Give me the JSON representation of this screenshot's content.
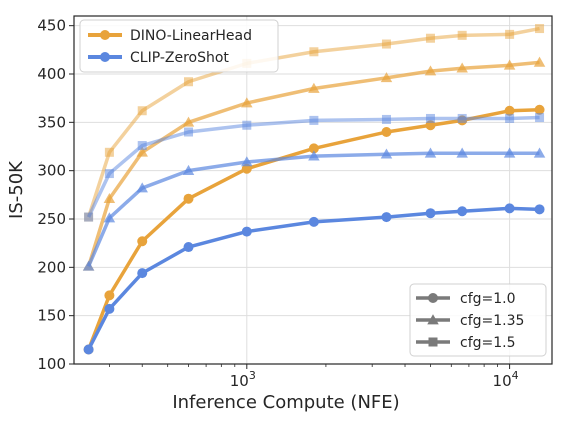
{
  "chart_data": {
    "type": "line",
    "xlabel": "Inference Compute (NFE)",
    "ylabel": "IS-50K",
    "xscale": "log",
    "xlim": [
      220,
      14500
    ],
    "ylim": [
      100,
      460
    ],
    "yticks": [
      100,
      150,
      200,
      250,
      300,
      350,
      400,
      450
    ],
    "xticks": [
      {
        "value": 1000,
        "base": "10",
        "exp": "3"
      },
      {
        "value": 10000,
        "base": "10",
        "exp": "4"
      }
    ],
    "grid": true,
    "colors": {
      "dino": "#E8A33B",
      "clip": "#5B87DF"
    },
    "method_legend": {
      "placement": "top-left",
      "entries": [
        {
          "label": "DINO-LinearHead",
          "color": "#E8A33B"
        },
        {
          "label": "CLIP-ZeroShot",
          "color": "#5B87DF"
        }
      ]
    },
    "cfg_legend": {
      "placement": "bottom-right",
      "entries": [
        {
          "label": "cfg=1.0",
          "marker": "circle"
        },
        {
          "label": "cfg=1.35",
          "marker": "triangle"
        },
        {
          "label": "cfg=1.5",
          "marker": "square"
        }
      ]
    },
    "x": [
      250,
      300,
      400,
      600,
      1000,
      1800,
      3400,
      5000,
      6600,
      10000,
      13000
    ],
    "series": [
      {
        "method": "DINO-LinearHead",
        "cfg": "cfg=1.0",
        "marker": "circle",
        "color": "#E8A33B",
        "opacity": 1.0,
        "values": [
          115,
          171,
          227,
          271,
          302,
          323,
          340,
          347,
          352,
          362,
          363
        ]
      },
      {
        "method": "DINO-LinearHead",
        "cfg": "cfg=1.35",
        "marker": "triangle",
        "color": "#E8A33B",
        "opacity": 0.7,
        "values": [
          201,
          271,
          319,
          350,
          370,
          385,
          396,
          403,
          406,
          409,
          412
        ]
      },
      {
        "method": "DINO-LinearHead",
        "cfg": "cfg=1.5",
        "marker": "square",
        "color": "#E8A33B",
        "opacity": 0.5,
        "values": [
          252,
          319,
          362,
          392,
          411,
          423,
          431,
          437,
          440,
          441,
          447
        ]
      },
      {
        "method": "CLIP-ZeroShot",
        "cfg": "cfg=1.0",
        "marker": "circle",
        "color": "#5B87DF",
        "opacity": 1.0,
        "values": [
          115,
          157,
          194,
          221,
          237,
          247,
          252,
          256,
          258,
          261,
          260
        ]
      },
      {
        "method": "CLIP-ZeroShot",
        "cfg": "cfg=1.35",
        "marker": "triangle",
        "color": "#5B87DF",
        "opacity": 0.7,
        "values": [
          201,
          251,
          282,
          300,
          309,
          315,
          317,
          318,
          318,
          318,
          318
        ]
      },
      {
        "method": "CLIP-ZeroShot",
        "cfg": "cfg=1.5",
        "marker": "square",
        "color": "#5B87DF",
        "opacity": 0.5,
        "values": [
          252,
          297,
          326,
          340,
          347,
          352,
          353,
          354,
          354,
          354,
          355
        ]
      }
    ]
  }
}
